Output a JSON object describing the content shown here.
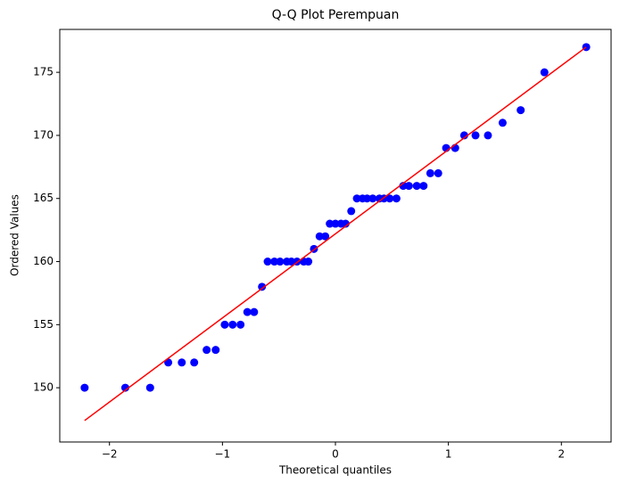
{
  "chart_data": {
    "type": "scatter",
    "title": "Q-Q Plot Perempuan",
    "x_label": "Theoretical quantiles",
    "y_label": "Ordered Values",
    "x": [
      -2.22,
      -1.86,
      -1.64,
      -1.48,
      -1.36,
      -1.25,
      -1.14,
      -1.06,
      -0.98,
      -0.91,
      -0.84,
      -0.78,
      -0.72,
      -0.65,
      -0.6,
      -0.54,
      -0.49,
      -0.43,
      -0.39,
      -0.34,
      -0.28,
      -0.24,
      -0.19,
      -0.14,
      -0.09,
      -0.05,
      0,
      0.05,
      0.09,
      0.14,
      0.19,
      0.24,
      0.28,
      0.33,
      0.39,
      0.43,
      0.48,
      0.54,
      0.6,
      0.65,
      0.72,
      0.78,
      0.84,
      0.91,
      0.98,
      1.06,
      1.14,
      1.24,
      1.35,
      1.48,
      1.64,
      1.85,
      2.22
    ],
    "values": [
      150,
      150,
      150,
      152,
      152,
      152,
      153,
      153,
      155,
      155,
      155,
      156,
      156,
      158,
      160,
      160,
      160,
      160,
      160,
      160,
      160,
      160,
      161,
      162,
      162,
      163,
      163,
      163,
      163,
      164,
      165,
      165,
      165,
      165,
      165,
      165,
      165,
      165,
      166,
      166,
      166,
      166,
      167,
      167,
      169,
      169,
      170,
      170,
      170,
      171,
      172,
      175,
      177
    ],
    "color": "#0000ff",
    "fit_line": {
      "x": [
        -2.22,
        2.22
      ],
      "values": [
        147.4,
        177.0
      ],
      "color": "#ff0000"
    },
    "xlim": [
      -2.44,
      2.44
    ],
    "xticks": [
      {
        "value": -2,
        "label": "−2"
      },
      {
        "value": -1,
        "label": "−1"
      },
      0,
      1,
      2
    ],
    "ylim": [
      145.7,
      178.4
    ],
    "yticks": [
      150,
      155,
      160,
      165,
      170,
      175
    ],
    "grid": false
  }
}
